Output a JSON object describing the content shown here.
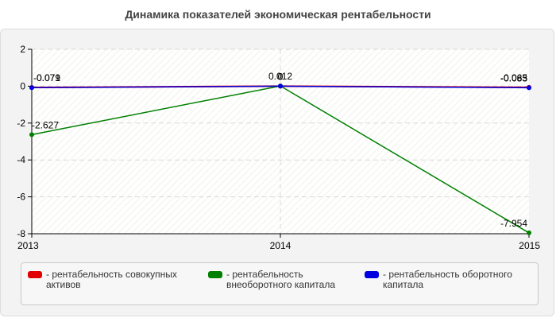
{
  "title": "Динамика показателей экономическая рентабельности",
  "chart_data": {
    "type": "line",
    "categories": [
      "2013",
      "2014",
      "2015"
    ],
    "ylim": [
      -8,
      2
    ],
    "yticks": [
      2,
      0,
      -2,
      -4,
      -6,
      -8
    ],
    "grid": true,
    "legend_position": "bottom",
    "series": [
      {
        "name": "- рентабельность совокупных активов",
        "color": "#e00000",
        "values": [
          -0.071,
          0,
          -0.065
        ],
        "labels": [
          "-0.071",
          "0",
          "-0.065"
        ]
      },
      {
        "name": "- рентабельность внеоборотного капитала",
        "color": "#008000",
        "values": [
          -2.627,
          0.012,
          -7.954
        ],
        "labels": [
          "-2.627",
          "0.012",
          "-7.954"
        ]
      },
      {
        "name": "- рентабельность оборотного капитала",
        "color": "#0000e0",
        "values": [
          -0.079,
          0,
          -0.083
        ],
        "labels": [
          "-0.079",
          "0",
          "-0.083"
        ]
      }
    ]
  }
}
